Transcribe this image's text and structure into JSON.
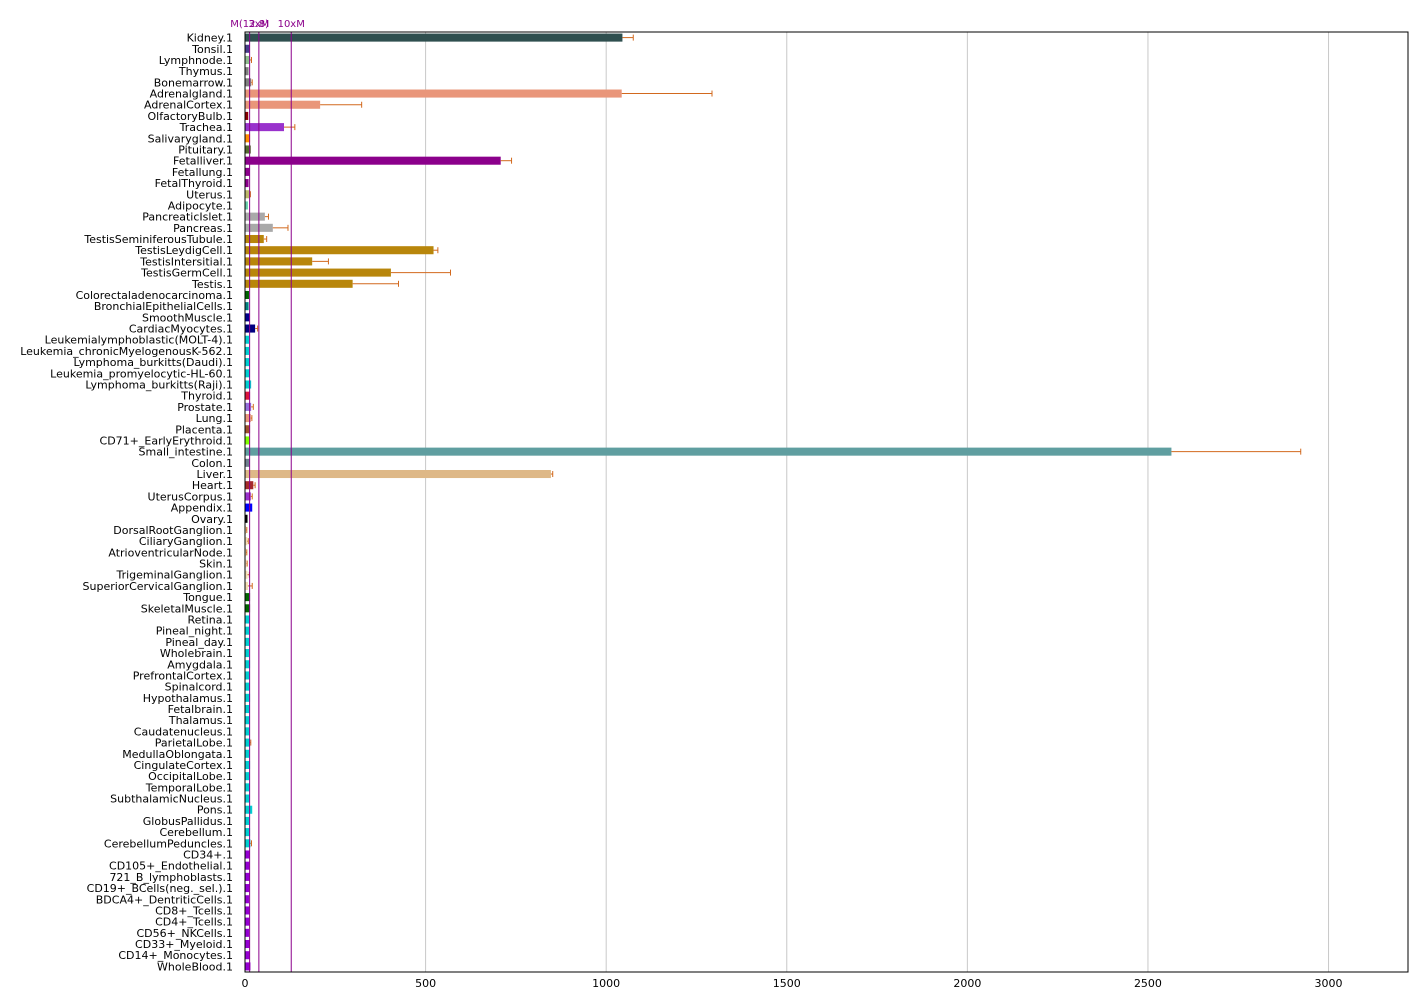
{
  "chart_data": {
    "type": "bar",
    "orientation": "horizontal",
    "title": "",
    "xlabel": "",
    "ylabel": "",
    "xlim": [
      0,
      3220
    ],
    "x_ticks": [
      0,
      500,
      1000,
      1500,
      2000,
      2500,
      3000
    ],
    "grid": "vertical",
    "reference_lines": [
      {
        "label": "M(12.8)",
        "value": 12.8
      },
      {
        "label": "3xM",
        "value": 38.4
      },
      {
        "label": "10xM",
        "value": 128
      }
    ],
    "bar_colors": {
      "Kidney": "#2f4f4f",
      "Lymphoid": "#483d8b",
      "Bone": "#808080",
      "Lymph": "#8fbc8f",
      "Adrenal": "#e9967a",
      "Olfactory": "#8b0000",
      "Trachea": "#9932cc",
      "Salivary": "#ff8c00",
      "Pituitary": "#556b2f",
      "Fetal": "#8b008b",
      "Uterus": "#bdb76b",
      "Adipocyte": "#66cdaa",
      "Pancreas": "#a9a9a9",
      "Testis": "#b8860b",
      "Colorectal": "#006400",
      "Bronchial": "#008080",
      "Smooth": "#00008b",
      "Cardiac": "#000080",
      "Cyan": "#00ced1",
      "Thyroid": "#dc143c",
      "Prostate": "#9370db",
      "Lung": "#e9967a",
      "Placenta": "#a0522d",
      "Erythroid": "#7fff00",
      "SmallIntestine": "#5f9ea0",
      "Colon": "#708090",
      "Liver": "#deb887",
      "Heart": "#a52a2a",
      "UterusCorpus": "#9932cc",
      "Appendix": "#0000ff",
      "Ovary": "#000000",
      "Ganglion": "#f5deb3",
      "Skin": "#ffe4c4",
      "Tongue": "#006400",
      "Skeletal": "#006400",
      "Immune": "#9400d3",
      "ErrorBar": "#d2691e",
      "RefLine": "#8b008b"
    },
    "categories": [
      "Kidney.1",
      "Tonsil.1",
      "Lymphnode.1",
      "Thymus.1",
      "Bonemarrow.1",
      "Adrenalgland.1",
      "AdrenalCortex.1",
      "OlfactoryBulb.1",
      "Trachea.1",
      "Salivarygland.1",
      "Pituitary.1",
      "Fetalliver.1",
      "Fetallung.1",
      "FetalThyroid.1",
      "Uterus.1",
      "Adipocyte.1",
      "PancreaticIslet.1",
      "Pancreas.1",
      "TestisSeminiferousTubule.1",
      "TestisLeydigCell.1",
      "TestisIntersitial.1",
      "TestisGermCell.1",
      "Testis.1",
      "Colorectaladenocarcinoma.1",
      "BronchialEpithelialCells.1",
      "SmoothMuscle.1",
      "CardiacMyocytes.1",
      "Leukemialymphoblastic(MOLT-4).1",
      "Leukemia_chronicMyelogenousK-562.1",
      "Lymphoma_burkitts(Daudi).1",
      "Leukemia_promyelocytic-HL-60.1",
      "Lymphoma_burkitts(Raji).1",
      "Thyroid.1",
      "Prostate.1",
      "Lung.1",
      "Placenta.1",
      "CD71+_EarlyErythroid.1",
      "Small_intestine.1",
      "Colon.1",
      "Liver.1",
      "Heart.1",
      "UterusCorpus.1",
      "Appendix.1",
      "Ovary.1",
      "DorsalRootGanglion.1",
      "CiliaryGanglion.1",
      "AtrioventricularNode.1",
      "Skin.1",
      "TrigeminalGanglion.1",
      "SuperiorCervicalGanglion.1",
      "Tongue.1",
      "SkeletalMuscle.1",
      "Retina.1",
      "Pineal_night.1",
      "Pineal_day.1",
      "Wholebrain.1",
      "Amygdala.1",
      "PrefrontalCortex.1",
      "Spinalcord.1",
      "Hypothalamus.1",
      "Fetalbrain.1",
      "Thalamus.1",
      "Caudatenucleus.1",
      "ParietalLobe.1",
      "MedullaOblongata.1",
      "CingulateCortex.1",
      "OccipitalLobe.1",
      "TemporalLobe.1",
      "SubthalamicNucleus.1",
      "Pons.1",
      "GlobusPallidus.1",
      "Cerebellum.1",
      "CerebellumPeduncles.1",
      "CD34+.1",
      "CD105+_Endothelial.1",
      "721_B_lymphoblasts.1",
      "CD19+_BCells(neg._sel.).1",
      "BDCA4+_DentriticCells.1",
      "CD8+_Tcells.1",
      "CD4+_Tcells.1",
      "CD56+_NKCells.1",
      "CD33+_Myeloid.1",
      "CD14+_Monocytes.1",
      "WholeBlood.1"
    ],
    "values": [
      1045,
      13,
      14,
      10,
      17,
      1043,
      208,
      9,
      108,
      14,
      16,
      708,
      13,
      10,
      12,
      8,
      55,
      77,
      52,
      522,
      186,
      404,
      298,
      11,
      10,
      13,
      28,
      11,
      11,
      13,
      13,
      17,
      14,
      17,
      16,
      14,
      12,
      2565,
      13,
      847,
      23,
      16,
      20,
      7,
      3,
      6,
      3,
      4,
      7,
      8,
      14,
      14,
      13,
      12,
      12,
      11,
      14,
      12,
      13,
      14,
      13,
      13,
      12,
      14,
      12,
      14,
      12,
      13,
      13,
      20,
      12,
      14,
      15,
      13,
      12,
      13,
      12,
      11,
      12,
      12,
      11,
      13,
      13,
      15
    ],
    "errors": [
      30,
      0,
      4,
      0,
      3,
      250,
      115,
      0,
      30,
      0,
      0,
      30,
      0,
      0,
      3,
      0,
      10,
      42,
      8,
      12,
      45,
      165,
      127,
      0,
      0,
      0,
      7,
      0,
      0,
      0,
      0,
      0,
      0,
      6,
      3,
      0,
      0,
      358,
      0,
      5,
      5,
      4,
      0,
      0,
      2,
      3,
      2,
      2,
      5,
      12,
      0,
      0,
      0,
      0,
      0,
      0,
      0,
      0,
      0,
      0,
      0,
      0,
      0,
      2,
      0,
      0,
      0,
      0,
      0,
      0,
      0,
      0,
      3,
      0,
      0,
      0,
      0,
      0,
      0,
      0,
      0,
      0,
      0,
      0
    ],
    "color_groups": [
      "Kidney",
      "Lymphoid",
      "Lymph",
      "Bone",
      "Bone",
      "Adrenal",
      "Adrenal",
      "Olfactory",
      "Trachea",
      "Salivary",
      "Pituitary",
      "Fetal",
      "Fetal",
      "Fetal",
      "Uterus",
      "Adipocyte",
      "Pancreas",
      "Pancreas",
      "Testis",
      "Testis",
      "Testis",
      "Testis",
      "Testis",
      "Colorectal",
      "Bronchial",
      "Smooth",
      "Cardiac",
      "Cyan",
      "Cyan",
      "Cyan",
      "Cyan",
      "Cyan",
      "Thyroid",
      "Prostate",
      "Lung",
      "Placenta",
      "Erythroid",
      "SmallIntestine",
      "Colon",
      "Liver",
      "Heart",
      "UterusCorpus",
      "Appendix",
      "Ovary",
      "Ganglion",
      "Ganglion",
      "Ganglion",
      "Skin",
      "Ganglion",
      "Ganglion",
      "Tongue",
      "Skeletal",
      "Cyan",
      "Cyan",
      "Cyan",
      "Cyan",
      "Cyan",
      "Cyan",
      "Cyan",
      "Cyan",
      "Cyan",
      "Cyan",
      "Cyan",
      "Cyan",
      "Cyan",
      "Cyan",
      "Cyan",
      "Cyan",
      "Cyan",
      "Cyan",
      "Cyan",
      "Cyan",
      "Cyan",
      "Immune",
      "Immune",
      "Immune",
      "Immune",
      "Immune",
      "Immune",
      "Immune",
      "Immune",
      "Immune",
      "Immune",
      "Immune"
    ]
  }
}
